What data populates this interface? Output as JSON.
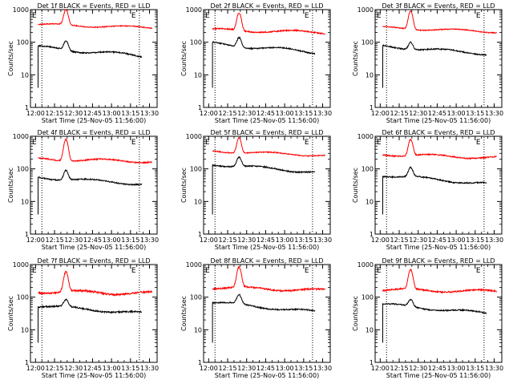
{
  "chart_data": [
    {
      "type": "line",
      "title": "Det 1f BLACK = Events, RED = LLD",
      "xlabel": "Start Time (25-Nov-05 11:56:00)",
      "ylabel": "Counts/sec",
      "xticks": [
        "12:00",
        "12:15",
        "12:30",
        "12:45",
        "13:00",
        "13:15",
        "13:30"
      ],
      "yticks": [
        "1",
        "10",
        "100",
        "1000"
      ],
      "xlim_min": [
        0,
        100
      ],
      "ylim": [
        1,
        1000
      ],
      "yscale": "log",
      "event_markers": {
        "labels": [
          "E",
          "E"
        ],
        "x_min": [
          9,
          86
        ]
      },
      "series": [
        {
          "name": "LLD",
          "color": "#ff0000",
          "start_min": 6,
          "end_min": 96,
          "base_start": 350,
          "base_end": 280,
          "wiggle": 0.08,
          "peak_min": 28,
          "peak": 1000,
          "peak_width": 1.5,
          "noise": 0.03
        },
        {
          "name": "Events",
          "color": "#000000",
          "start_min": 6,
          "end_min": 88,
          "base_start": 70,
          "base_end": 38,
          "wiggle": 0.12,
          "peak_min": 28,
          "peak": 110,
          "peak_width": 1.6,
          "noise": 0.04,
          "drop_min": 4
        }
      ]
    },
    {
      "type": "line",
      "title": "Det 2f BLACK = Events, RED = LLD",
      "xlabel": "Start Time (25-Nov-05 11:56:00)",
      "ylabel": "Counts/sec",
      "xticks": [
        "12:00",
        "12:15",
        "12:30",
        "12:45",
        "13:00",
        "13:15",
        "13:30"
      ],
      "yticks": [
        "1",
        "10",
        "100",
        "1000"
      ],
      "xlim_min": [
        0,
        100
      ],
      "ylim": [
        1,
        1000
      ],
      "yscale": "log",
      "event_markers": {
        "labels": [
          "E",
          "E"
        ],
        "x_min": [
          9,
          86
        ]
      },
      "series": [
        {
          "name": "LLD",
          "color": "#ff0000",
          "start_min": 7,
          "end_min": 96,
          "base_start": 240,
          "base_end": 200,
          "wiggle": 0.1,
          "peak_min": 28,
          "peak": 800,
          "peak_width": 1.5,
          "noise": 0.04
        },
        {
          "name": "Events",
          "color": "#000000",
          "start_min": 7,
          "end_min": 88,
          "base_start": 90,
          "base_end": 50,
          "wiggle": 0.12,
          "peak_min": 28,
          "peak": 140,
          "peak_width": 1.6,
          "noise": 0.04,
          "drop_min": 7
        }
      ]
    },
    {
      "type": "line",
      "title": "Det 3f BLACK = Events, RED = LLD",
      "xlabel": "Start Time (25-Nov-05 11:56:00)",
      "ylabel": "Counts/sec",
      "xticks": [
        "12:00",
        "12:15",
        "12:30",
        "12:45",
        "13:00",
        "13:15",
        "13:30"
      ],
      "yticks": [
        "1",
        "10",
        "100",
        "1000"
      ],
      "xlim_min": [
        0,
        100
      ],
      "ylim": [
        1,
        1000
      ],
      "yscale": "log",
      "event_markers": {
        "labels": [
          "E",
          "E"
        ],
        "x_min": [
          9,
          86
        ]
      },
      "series": [
        {
          "name": "LLD",
          "color": "#ff0000",
          "start_min": 6,
          "end_min": 96,
          "base_start": 280,
          "base_end": 210,
          "wiggle": 0.08,
          "peak_min": 28,
          "peak": 900,
          "peak_width": 1.5,
          "noise": 0.03
        },
        {
          "name": "Events",
          "color": "#000000",
          "start_min": 6,
          "end_min": 88,
          "base_start": 75,
          "base_end": 45,
          "wiggle": 0.1,
          "peak_min": 28,
          "peak": 100,
          "peak_width": 1.6,
          "noise": 0.04,
          "drop_min": 4
        }
      ]
    },
    {
      "type": "line",
      "title": "Det 4f BLACK = Events, RED = LLD",
      "xlabel": "Start Time (25-Nov-05 11:56:00)",
      "ylabel": "Counts/sec",
      "xticks": [
        "12:00",
        "12:15",
        "12:30",
        "12:45",
        "13:00",
        "13:15",
        "13:30"
      ],
      "yticks": [
        "1",
        "10",
        "100",
        "1000"
      ],
      "xlim_min": [
        0,
        100
      ],
      "ylim": [
        1,
        1000
      ],
      "yscale": "log",
      "event_markers": {
        "labels": [
          "E",
          "E"
        ],
        "x_min": [
          9,
          86
        ]
      },
      "series": [
        {
          "name": "LLD",
          "color": "#ff0000",
          "start_min": 6,
          "end_min": 96,
          "base_start": 200,
          "base_end": 170,
          "wiggle": 0.1,
          "peak_min": 28,
          "peak": 800,
          "peak_width": 1.5,
          "noise": 0.04
        },
        {
          "name": "Events",
          "color": "#000000",
          "start_min": 6,
          "end_min": 88,
          "base_start": 55,
          "base_end": 35,
          "wiggle": 0.1,
          "peak_min": 28,
          "peak": 90,
          "peak_width": 1.6,
          "noise": 0.04,
          "drop_min": 4
        }
      ]
    },
    {
      "type": "line",
      "title": "Det 5f BLACK = Events, RED = LLD",
      "xlabel": "Start Time (25-Nov-05 11:56:00)",
      "ylabel": "Counts/sec",
      "xticks": [
        "12:00",
        "12:15",
        "12:30",
        "12:45",
        "13:00",
        "13:15",
        "13:30"
      ],
      "yticks": [
        "1",
        "10",
        "100",
        "1000"
      ],
      "xlim_min": [
        0,
        100
      ],
      "ylim": [
        1,
        1000
      ],
      "yscale": "log",
      "event_markers": {
        "labels": [
          "E",
          "E"
        ],
        "x_min": [
          9,
          86
        ]
      },
      "series": [
        {
          "name": "LLD",
          "color": "#ff0000",
          "start_min": 7,
          "end_min": 96,
          "base_start": 350,
          "base_end": 260,
          "wiggle": 0.08,
          "peak_min": 28,
          "peak": 900,
          "peak_width": 1.5,
          "noise": 0.03
        },
        {
          "name": "Events",
          "color": "#000000",
          "start_min": 7,
          "end_min": 88,
          "base_start": 140,
          "base_end": 80,
          "wiggle": 0.1,
          "peak_min": 28,
          "peak": 230,
          "peak_width": 1.6,
          "noise": 0.04,
          "drop_min": 7
        }
      ]
    },
    {
      "type": "line",
      "title": "Det 6f BLACK = Events, RED = LLD",
      "xlabel": "Start Time (25-Nov-05 11:56:00)",
      "ylabel": "Counts/sec",
      "xticks": [
        "12:00",
        "12:15",
        "12:30",
        "12:45",
        "13:00",
        "13:15",
        "13:30"
      ],
      "yticks": [
        "1",
        "10",
        "100",
        "1000"
      ],
      "xlim_min": [
        0,
        100
      ],
      "ylim": [
        1,
        1000
      ],
      "yscale": "log",
      "event_markers": {
        "labels": [
          "E",
          "E"
        ],
        "x_min": [
          9,
          86
        ]
      },
      "series": [
        {
          "name": "LLD",
          "color": "#ff0000",
          "start_min": 6,
          "end_min": 96,
          "base_start": 280,
          "base_end": 220,
          "wiggle": 0.1,
          "peak_min": 28,
          "peak": 800,
          "peak_width": 1.5,
          "noise": 0.04
        },
        {
          "name": "Events",
          "color": "#000000",
          "start_min": 6,
          "end_min": 88,
          "base_start": 65,
          "base_end": 35,
          "wiggle": 0.1,
          "peak_min": 28,
          "peak": 110,
          "peak_width": 1.6,
          "noise": 0.04,
          "drop_min": 4
        }
      ]
    },
    {
      "type": "line",
      "title": "Det 7f BLACK = Events, RED = LLD",
      "xlabel": "Start Time (25-Nov-05 11:56:00)",
      "ylabel": "Counts/sec",
      "xticks": [
        "12:00",
        "12:15",
        "12:30",
        "12:45",
        "13:00",
        "13:15",
        "13:30"
      ],
      "yticks": [
        "1",
        "10",
        "100",
        "1000"
      ],
      "xlim_min": [
        0,
        100
      ],
      "ylim": [
        1,
        1000
      ],
      "yscale": "log",
      "event_markers": {
        "labels": [
          "E",
          "E"
        ],
        "x_min": [
          9,
          86
        ]
      },
      "series": [
        {
          "name": "LLD",
          "color": "#ff0000",
          "start_min": 6,
          "end_min": 96,
          "base_start": 150,
          "base_end": 130,
          "wiggle": 0.12,
          "peak_min": 28,
          "peak": 600,
          "peak_width": 1.5,
          "noise": 0.06
        },
        {
          "name": "Events",
          "color": "#000000",
          "start_min": 6,
          "end_min": 88,
          "base_start": 55,
          "base_end": 32,
          "wiggle": 0.1,
          "peak_min": 28,
          "peak": 85,
          "peak_width": 1.6,
          "noise": 0.05,
          "drop_min": 4
        }
      ]
    },
    {
      "type": "line",
      "title": "Det 8f BLACK = Events, RED = LLD",
      "xlabel": "Start Time (25-Nov-05 11:56:00)",
      "ylabel": "Counts/sec",
      "xticks": [
        "12:00",
        "12:15",
        "12:30",
        "12:45",
        "13:00",
        "13:15",
        "13:30"
      ],
      "yticks": [
        "1",
        "10",
        "100",
        "1000"
      ],
      "xlim_min": [
        0,
        100
      ],
      "ylim": [
        1,
        1000
      ],
      "yscale": "log",
      "event_markers": {
        "labels": [
          "E",
          "E"
        ],
        "x_min": [
          9,
          86
        ]
      },
      "series": [
        {
          "name": "LLD",
          "color": "#ff0000",
          "start_min": 7,
          "end_min": 96,
          "base_start": 200,
          "base_end": 160,
          "wiggle": 0.1,
          "peak_min": 28,
          "peak": 850,
          "peak_width": 1.5,
          "noise": 0.05
        },
        {
          "name": "Events",
          "color": "#000000",
          "start_min": 7,
          "end_min": 88,
          "base_start": 70,
          "base_end": 35,
          "wiggle": 0.1,
          "peak_min": 28,
          "peak": 120,
          "peak_width": 1.6,
          "noise": 0.04,
          "drop_min": 7
        }
      ]
    },
    {
      "type": "line",
      "title": "Det 9f BLACK = Events, RED = LLD",
      "xlabel": "Start Time (25-Nov-05 11:56:00)",
      "ylabel": "Counts/sec",
      "xticks": [
        "12:00",
        "12:15",
        "12:30",
        "12:45",
        "13:00",
        "13:15",
        "13:30"
      ],
      "yticks": [
        "1",
        "10",
        "100",
        "1000"
      ],
      "xlim_min": [
        0,
        100
      ],
      "ylim": [
        1,
        1000
      ],
      "yscale": "log",
      "event_markers": {
        "labels": [
          "E",
          "E"
        ],
        "x_min": [
          9,
          86
        ]
      },
      "series": [
        {
          "name": "LLD",
          "color": "#ff0000",
          "start_min": 6,
          "end_min": 96,
          "base_start": 170,
          "base_end": 150,
          "wiggle": 0.1,
          "peak_min": 28,
          "peak": 700,
          "peak_width": 1.5,
          "noise": 0.05
        },
        {
          "name": "Events",
          "color": "#000000",
          "start_min": 6,
          "end_min": 88,
          "base_start": 60,
          "base_end": 32,
          "wiggle": 0.1,
          "peak_min": 28,
          "peak": 85,
          "peak_width": 1.6,
          "noise": 0.04,
          "drop_min": 4
        }
      ]
    }
  ]
}
